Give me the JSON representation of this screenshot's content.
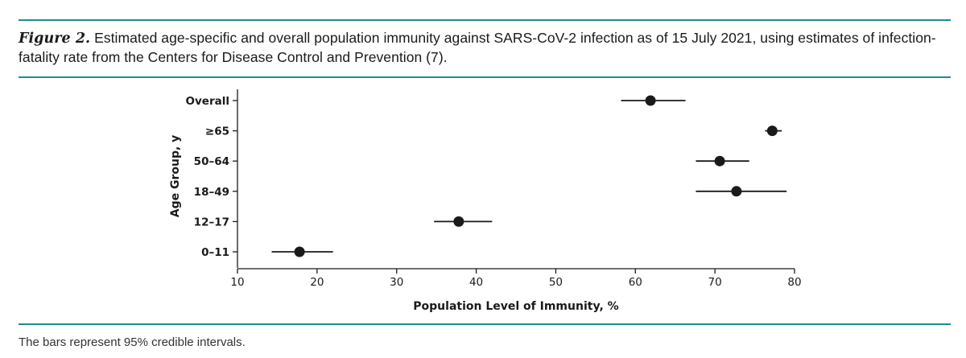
{
  "figure": {
    "label": "Figure 2.",
    "caption": "Estimated age-specific and overall population immunity against SARS-CoV-2 infection as of 15 July 2021, using estimates of infection-fatality rate from the Centers for Disease Control and Prevention (7).",
    "footnote": "The bars represent 95% credible intervals."
  },
  "colors": {
    "accent_rule": "#1f8b8f",
    "marker": "#1a1a1a"
  },
  "chart_data": {
    "type": "scatter",
    "orientation": "horizontal",
    "xlabel": "Population Level of Immunity, %",
    "ylabel": "Age Group, y",
    "xlim": [
      10,
      80
    ],
    "xticks": [
      10,
      20,
      30,
      40,
      50,
      60,
      70,
      80
    ],
    "grid": false,
    "categories": [
      "Overall",
      "≥65",
      "50–64",
      "18–49",
      "12–17",
      "0–11"
    ],
    "points": [
      {
        "category": "Overall",
        "estimate": 61.9,
        "lower": 58.2,
        "upper": 66.3
      },
      {
        "category": "≥65",
        "estimate": 77.2,
        "lower": 76.3,
        "upper": 78.4
      },
      {
        "category": "50–64",
        "estimate": 70.6,
        "lower": 67.6,
        "upper": 74.3
      },
      {
        "category": "18–49",
        "estimate": 72.7,
        "lower": 67.6,
        "upper": 79.0
      },
      {
        "category": "12–17",
        "estimate": 37.8,
        "lower": 34.7,
        "upper": 42.0
      },
      {
        "category": "0–11",
        "estimate": 17.8,
        "lower": 14.3,
        "upper": 22.0
      }
    ]
  }
}
